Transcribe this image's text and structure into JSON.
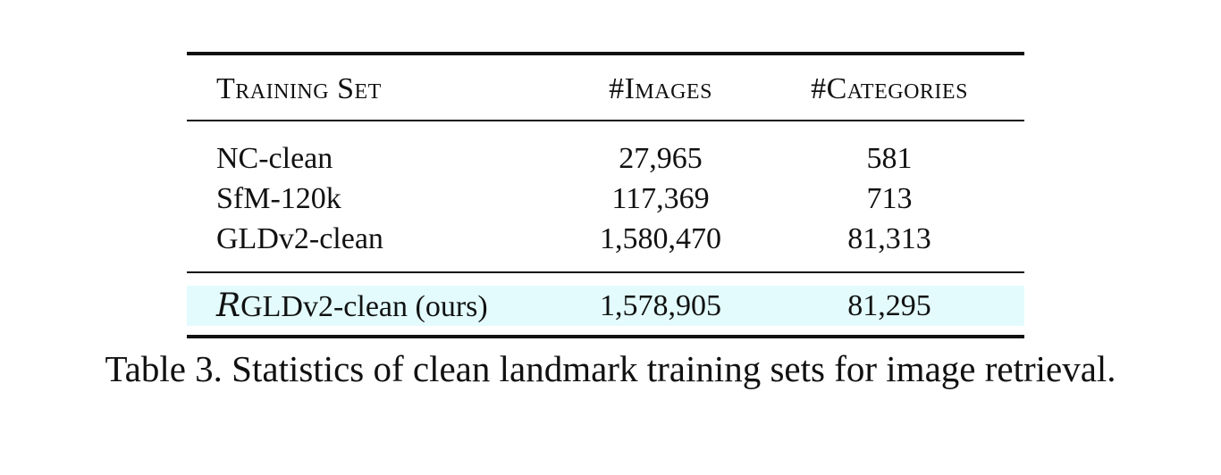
{
  "table": {
    "headers": [
      "Training Set",
      "#Images",
      "#Categories"
    ],
    "rows": [
      {
        "training_set": "NC-clean",
        "images": "27,965",
        "categories": "581"
      },
      {
        "training_set": "SfM-120k",
        "images": "117,369",
        "categories": "713"
      },
      {
        "training_set": "GLDv2-clean",
        "images": "1,580,470",
        "categories": "81,313"
      }
    ],
    "highlight_row": {
      "script_prefix": "R",
      "training_set": "GLDv2-clean (ours)",
      "images": "1,578,905",
      "categories": "81,295"
    },
    "highlight_color": "#e3fbfc"
  },
  "caption": "Table 3. Statistics of clean landmark training sets for image retrieval."
}
